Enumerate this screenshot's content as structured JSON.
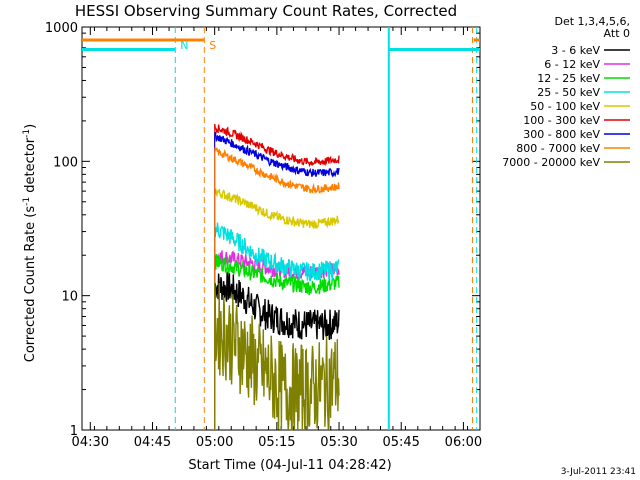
{
  "chart_data": {
    "type": "line",
    "title": "HESSI Observing Summary Count Rates, Corrected",
    "xlabel": "Start Time (04-Jul-11 04:28:42)",
    "ylabel_main": "Corrected Count Rate (s",
    "ylabel_exp1": "-1",
    "ylabel_mid": " detector",
    "ylabel_exp2": "-1",
    "ylabel_end": ")",
    "yscale": "log",
    "ylim": [
      1,
      1000
    ],
    "xlim_minutes": [
      -2,
      94
    ],
    "x_ticks": [
      {
        "label": "04:30",
        "t": 0
      },
      {
        "label": "04:45",
        "t": 15
      },
      {
        "label": "05:00",
        "t": 30
      },
      {
        "label": "05:15",
        "t": 45
      },
      {
        "label": "05:30",
        "t": 60
      },
      {
        "label": "05:45",
        "t": 75
      },
      {
        "label": "06:00",
        "t": 90
      }
    ],
    "y_ticks": [
      {
        "label": "1",
        "v": 1
      },
      {
        "label": "10",
        "v": 10
      },
      {
        "label": "100",
        "v": 100
      },
      {
        "label": "1000",
        "v": 1000
      }
    ],
    "legend_header": [
      "Det 1,3,4,5,6,",
      "Att 0"
    ],
    "series": [
      {
        "name": "3 - 6 keV",
        "color": "#000000",
        "start": [
          12,
          11.5,
          10
        ],
        "mid": [
          8,
          7,
          6.5,
          6.2
        ],
        "end": [
          6,
          6,
          6.3
        ],
        "noise": 0.12
      },
      {
        "name": "6 - 12 keV",
        "color": "#e030e0",
        "start": [
          20,
          19,
          18
        ],
        "mid": [
          17,
          16,
          15.5,
          15
        ],
        "end": [
          15,
          15.5,
          16
        ],
        "noise": 0.06
      },
      {
        "name": "12 - 25 keV",
        "color": "#00dd00",
        "start": [
          18,
          17,
          15.5
        ],
        "mid": [
          14.5,
          13.5,
          12.5,
          12
        ],
        "end": [
          11.5,
          12,
          12.5
        ],
        "noise": 0.06
      },
      {
        "name": "25 - 50 keV",
        "color": "#00e0e0",
        "start": [
          32,
          28,
          24
        ],
        "mid": [
          20,
          18,
          16.5,
          15.5
        ],
        "end": [
          15,
          15.5,
          16
        ],
        "noise": 0.07
      },
      {
        "name": "50 - 100 keV",
        "color": "#d8c800",
        "start": [
          60,
          55,
          50
        ],
        "mid": [
          45,
          40,
          37,
          35
        ],
        "end": [
          34,
          35,
          37
        ],
        "noise": 0.035
      },
      {
        "name": "100 - 300 keV",
        "color": "#e00000",
        "start": [
          180,
          165,
          150
        ],
        "mid": [
          135,
          120,
          110,
          102
        ],
        "end": [
          98,
          100,
          104
        ],
        "noise": 0.03
      },
      {
        "name": "300 - 800 keV",
        "color": "#0000dd",
        "start": [
          155,
          140,
          125
        ],
        "mid": [
          112,
          100,
          92,
          86
        ],
        "end": [
          82,
          82,
          84
        ],
        "noise": 0.03
      },
      {
        "name": "800 - 7000 keV",
        "color": "#ff8000",
        "start": [
          120,
          108,
          97
        ],
        "mid": [
          86,
          77,
          70,
          65
        ],
        "end": [
          62,
          63,
          65
        ],
        "noise": 0.03
      },
      {
        "name": "7000 - 20000 keV",
        "color": "#808000",
        "start": [
          6,
          5,
          4
        ],
        "mid": [
          3,
          2.5,
          2,
          2
        ],
        "end": [
          2,
          2.2,
          2.5
        ],
        "noise": 0.35
      }
    ],
    "series_t_range": [
      30,
      60
    ],
    "saa_bars": [
      {
        "color": "#ff8000",
        "t0": -2,
        "t1": 27.5,
        "v": 800
      },
      {
        "color": "#00e0e0",
        "t0": -2,
        "t1": 20.5,
        "v": 680
      },
      {
        "color": "#00e0e0",
        "t0": 72,
        "t1": 94,
        "v": 680
      },
      {
        "color": "#ff8000",
        "t0": 92.5,
        "t1": 94,
        "v": 800
      }
    ],
    "markers": [
      {
        "label": "N",
        "color": "#00e0e0",
        "t": 20.5,
        "style": "dashed"
      },
      {
        "label": "S",
        "color": "#ff8000",
        "t": 27.5,
        "style": "dashed"
      },
      {
        "label": "",
        "color": "#00e0e0",
        "t": 72,
        "style": "solid"
      },
      {
        "label": "",
        "color": "#ff8000",
        "t": 92.2,
        "style": "dashed"
      },
      {
        "label": "",
        "color": "#00e0e0",
        "t": 93.2,
        "style": "dashed"
      }
    ],
    "footer_date": "3-Jul-2011 23:41"
  }
}
